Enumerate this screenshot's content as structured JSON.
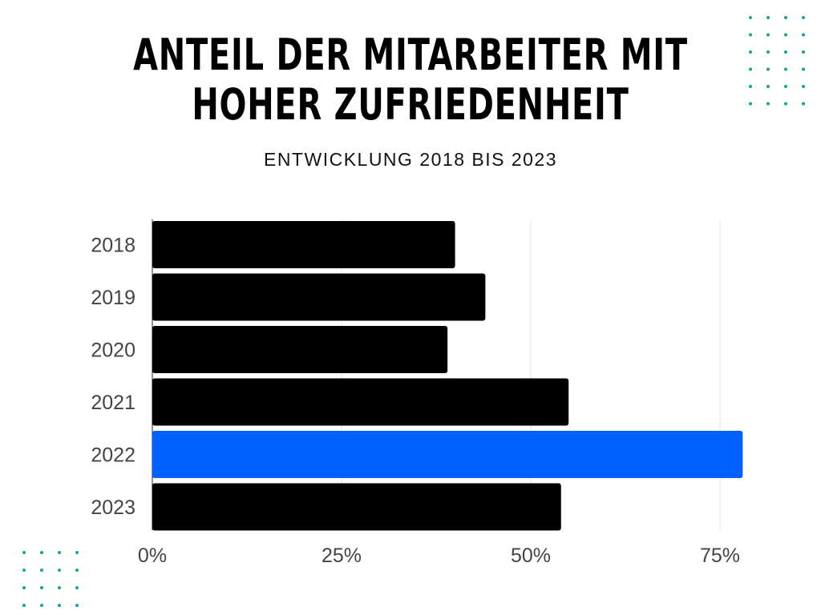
{
  "title_line1": "ANTEIL DER MITARBEITER MIT",
  "title_line2": "HOHER ZUFRIEDENHEIT",
  "subtitle": "ENTWICKLUNG 2018 BIS 2023",
  "colors": {
    "bar": "#000000",
    "highlight": "#0061fe",
    "dots": "#16a39a",
    "grid": "#e6e6e6"
  },
  "chart_data": {
    "type": "bar",
    "orientation": "horizontal",
    "categories": [
      "2018",
      "2019",
      "2020",
      "2021",
      "2022",
      "2023"
    ],
    "values": [
      40,
      44,
      39,
      55,
      78,
      54
    ],
    "highlight": "2022",
    "xlim": [
      0,
      75
    ],
    "xticks": [
      0,
      25,
      50,
      75
    ],
    "xtick_labels": [
      "0%",
      "25%",
      "50%",
      "75%"
    ],
    "grid": true
  }
}
